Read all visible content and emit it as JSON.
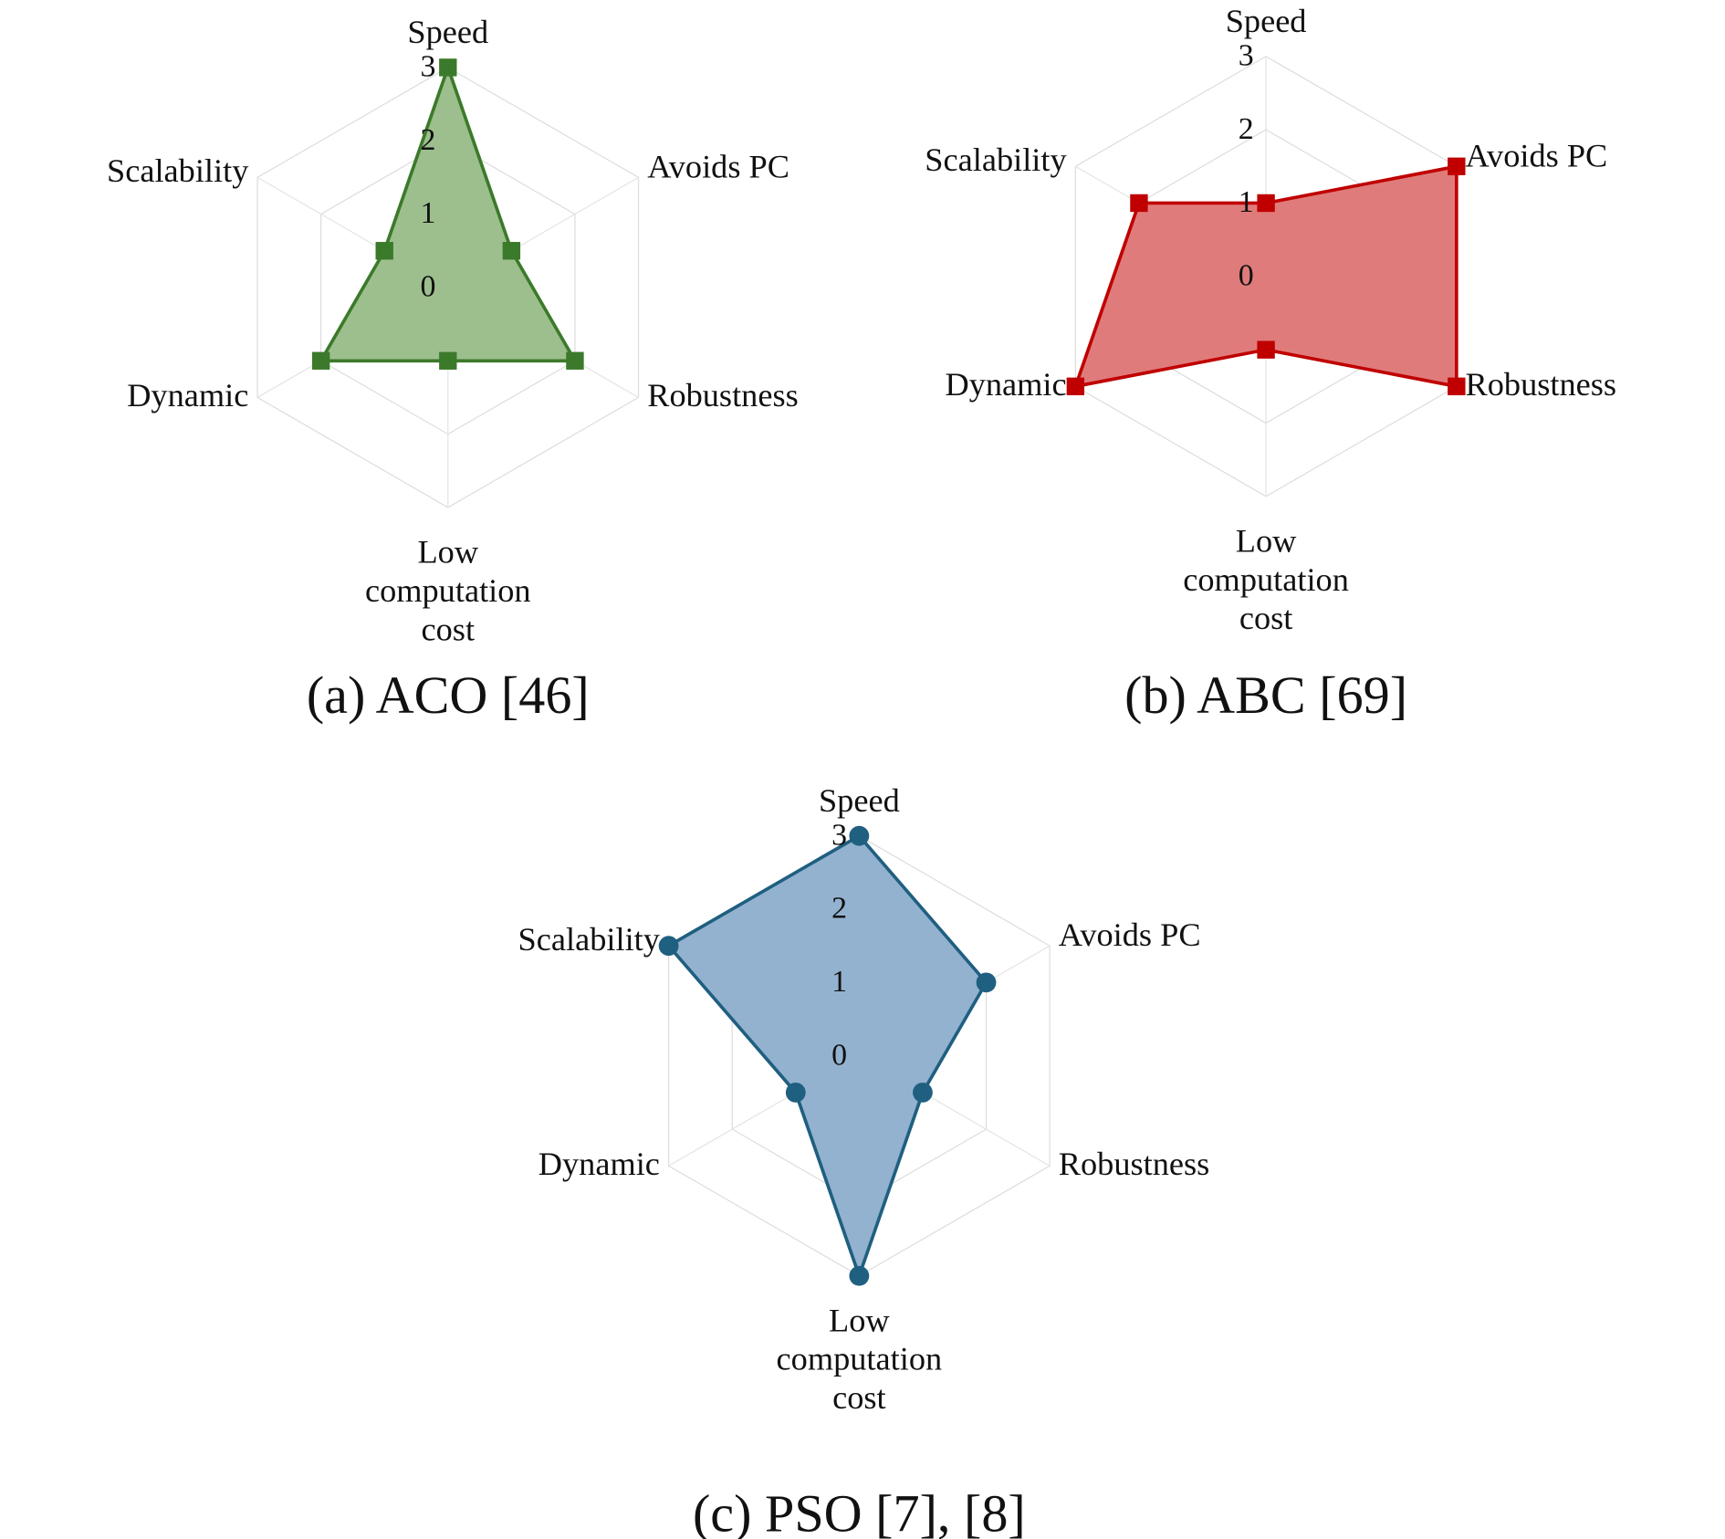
{
  "chart_data": [
    {
      "type": "radar",
      "title": "(a) ACO [46]",
      "axes": [
        "Speed",
        "Avoids PC",
        "Robustness",
        "Low computation cost",
        "Dynamic",
        "Scalability"
      ],
      "axis_label_lines": [
        [
          "Speed"
        ],
        [
          "Avoids PC"
        ],
        [
          "Robustness"
        ],
        [
          "Low",
          "computation",
          "cost"
        ],
        [
          "Dynamic"
        ],
        [
          "Scalability"
        ]
      ],
      "values": [
        3,
        1,
        2,
        1,
        2,
        1
      ],
      "ticks": [
        "0",
        "1",
        "2",
        "3"
      ],
      "range": [
        0,
        3
      ],
      "marker": "square",
      "line_color": "#3b7a2a",
      "fill_color": "#9dbf8e"
    },
    {
      "type": "radar",
      "title": "(b) ABC [69]",
      "axes": [
        "Speed",
        "Avoids PC",
        "Robustness",
        "Low computation cost",
        "Dynamic",
        "Scalability"
      ],
      "axis_label_lines": [
        [
          "Speed"
        ],
        [
          "Avoids PC"
        ],
        [
          "Robustness"
        ],
        [
          "Low",
          "computation",
          "cost"
        ],
        [
          "Dynamic"
        ],
        [
          "Scalability"
        ]
      ],
      "values": [
        1,
        3,
        3,
        1,
        3,
        2
      ],
      "ticks": [
        "0",
        "1",
        "2",
        "3"
      ],
      "range": [
        0,
        3
      ],
      "marker": "square",
      "line_color": "#c00000",
      "fill_color": "#e07b7b"
    },
    {
      "type": "radar",
      "title": "(c) PSO [7], [8]",
      "axes": [
        "Speed",
        "Avoids PC",
        "Robustness",
        "Low computation cost",
        "Dynamic",
        "Scalability"
      ],
      "axis_label_lines": [
        [
          "Speed"
        ],
        [
          "Avoids PC"
        ],
        [
          "Robustness"
        ],
        [
          "Low",
          "computation",
          "cost"
        ],
        [
          "Dynamic"
        ],
        [
          "Scalability"
        ]
      ],
      "values": [
        3,
        2,
        1,
        3,
        1,
        3
      ],
      "ticks": [
        "0",
        "1",
        "2",
        "3"
      ],
      "range": [
        0,
        3
      ],
      "marker": "circle",
      "line_color": "#1f5f80",
      "fill_color": "#93b2cf"
    }
  ]
}
